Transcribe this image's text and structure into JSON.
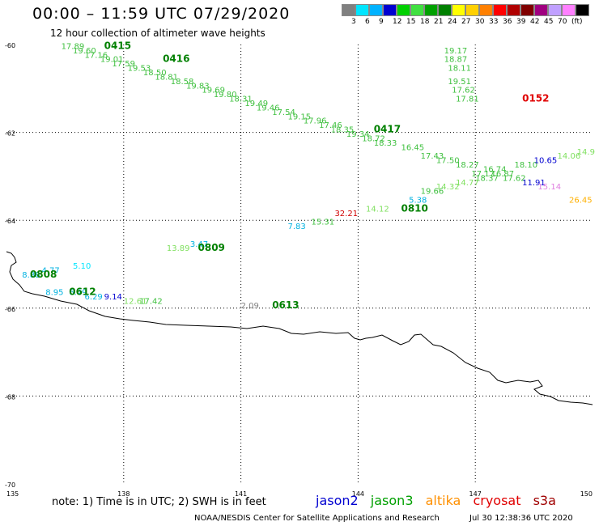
{
  "header": {
    "title": "00:00 – 11:59 UTC 07/29/2020",
    "subtitle": "12 hour collection of altimeter wave heights"
  },
  "legend": {
    "colors": [
      "#808080",
      "#00e5ff",
      "#00b2ff",
      "#0000d0",
      "#00d000",
      "#40e040",
      "#00a000",
      "#008000",
      "#ffff00",
      "#ffd000",
      "#ff8000",
      "#ff0000",
      "#b00000",
      "#800000",
      "#a00080",
      "#c0a0ff",
      "#ff80ff",
      "#000000"
    ],
    "labels": [
      "3",
      "6",
      "9",
      "12",
      "15",
      "18",
      "21",
      "24",
      "27",
      "30",
      "33",
      "36",
      "39",
      "42",
      "45",
      "70",
      "(ft)"
    ],
    "unit": "(ft)"
  },
  "axes": {
    "lon_ticks": [
      "135",
      "138",
      "141",
      "144",
      "147",
      "150"
    ],
    "lat_ticks": [
      "-60",
      "-62",
      "-64",
      "-66",
      "-68",
      "-70"
    ]
  },
  "passes": [
    {
      "label": "0415",
      "lon": 137.5,
      "lat": -60.1,
      "color": "#008000"
    },
    {
      "label": "0416",
      "lon": 139.0,
      "lat": -60.4,
      "color": "#008000"
    },
    {
      "label": "0417",
      "lon": 144.4,
      "lat": -62.0,
      "color": "#008000"
    },
    {
      "label": "0152",
      "lon": 148.2,
      "lat": -61.3,
      "color": "#e00000"
    },
    {
      "label": "0810",
      "lon": 145.1,
      "lat": -63.8,
      "color": "#008000"
    },
    {
      "label": "0809",
      "lon": 139.9,
      "lat": -64.7,
      "color": "#008000"
    },
    {
      "label": "0808",
      "lon": 135.6,
      "lat": -65.3,
      "color": "#008000"
    },
    {
      "label": "0612",
      "lon": 136.6,
      "lat": -65.7,
      "color": "#008000"
    },
    {
      "label": "0613",
      "lon": 141.8,
      "lat": -66.0,
      "color": "#008000"
    }
  ],
  "observations": [
    {
      "v": "17.89",
      "lon": 136.4,
      "lat": -60.1,
      "color": "#40c040"
    },
    {
      "v": "19.60",
      "lon": 136.7,
      "lat": -60.2,
      "color": "#40c040"
    },
    {
      "v": "17.16",
      "lon": 137.0,
      "lat": -60.3,
      "color": "#40c040"
    },
    {
      "v": "19.01",
      "lon": 137.4,
      "lat": -60.4,
      "color": "#40c040"
    },
    {
      "v": "17.59",
      "lon": 137.7,
      "lat": -60.5,
      "color": "#40c040"
    },
    {
      "v": "19.53",
      "lon": 138.1,
      "lat": -60.6,
      "color": "#40c040"
    },
    {
      "v": "18.50",
      "lon": 138.5,
      "lat": -60.7,
      "color": "#40c040"
    },
    {
      "v": "18.81",
      "lon": 138.8,
      "lat": -60.8,
      "color": "#40c040"
    },
    {
      "v": "18.58",
      "lon": 139.2,
      "lat": -60.9,
      "color": "#40c040"
    },
    {
      "v": "19.83",
      "lon": 139.6,
      "lat": -61.0,
      "color": "#40c040"
    },
    {
      "v": "19.69",
      "lon": 140.0,
      "lat": -61.1,
      "color": "#40c040"
    },
    {
      "v": "19.80",
      "lon": 140.3,
      "lat": -61.2,
      "color": "#40c040"
    },
    {
      "v": "18.31",
      "lon": 140.7,
      "lat": -61.3,
      "color": "#40c040"
    },
    {
      "v": "19.49",
      "lon": 141.1,
      "lat": -61.4,
      "color": "#40c040"
    },
    {
      "v": "19.46",
      "lon": 141.4,
      "lat": -61.5,
      "color": "#40c040"
    },
    {
      "v": "17.54",
      "lon": 141.8,
      "lat": -61.6,
      "color": "#40c040"
    },
    {
      "v": "19.15",
      "lon": 142.2,
      "lat": -61.7,
      "color": "#40c040"
    },
    {
      "v": "17.96",
      "lon": 142.6,
      "lat": -61.8,
      "color": "#40c040"
    },
    {
      "v": "17.46",
      "lon": 143.0,
      "lat": -61.9,
      "color": "#40c040"
    },
    {
      "v": "18.35",
      "lon": 143.3,
      "lat": -62.0,
      "color": "#40c040"
    },
    {
      "v": "19.34",
      "lon": 143.7,
      "lat": -62.1,
      "color": "#40c040"
    },
    {
      "v": "18.72",
      "lon": 144.1,
      "lat": -62.2,
      "color": "#40c040"
    },
    {
      "v": "18.33",
      "lon": 144.4,
      "lat": -62.3,
      "color": "#40c040"
    },
    {
      "v": "16.45",
      "lon": 145.1,
      "lat": -62.4,
      "color": "#40c040"
    },
    {
      "v": "17.43",
      "lon": 145.6,
      "lat": -62.6,
      "color": "#40c040"
    },
    {
      "v": "17.50",
      "lon": 146.0,
      "lat": -62.7,
      "color": "#40c040"
    },
    {
      "v": "18.27",
      "lon": 146.5,
      "lat": -62.8,
      "color": "#40c040"
    },
    {
      "v": "17.17",
      "lon": 146.9,
      "lat": -63.0,
      "color": "#40c040"
    },
    {
      "v": "16.74",
      "lon": 147.2,
      "lat": -62.9,
      "color": "#40c040"
    },
    {
      "v": "16.87",
      "lon": 147.4,
      "lat": -63.0,
      "color": "#40c040"
    },
    {
      "v": "17.62",
      "lon": 147.7,
      "lat": -63.1,
      "color": "#40c040"
    },
    {
      "v": "18.10",
      "lon": 148.0,
      "lat": -62.8,
      "color": "#40c040"
    },
    {
      "v": "18.37",
      "lon": 147.0,
      "lat": -63.1,
      "color": "#40c040"
    },
    {
      "v": "10.65",
      "lon": 148.5,
      "lat": -62.7,
      "color": "#0000d0"
    },
    {
      "v": "11.91",
      "lon": 148.2,
      "lat": -63.2,
      "color": "#0000d0"
    },
    {
      "v": "14.06",
      "lon": 149.1,
      "lat": -62.6,
      "color": "#80e060"
    },
    {
      "v": "14.9",
      "lon": 149.6,
      "lat": -62.5,
      "color": "#80e060"
    },
    {
      "v": "15.14",
      "lon": 148.6,
      "lat": -63.3,
      "color": "#e080e0"
    },
    {
      "v": "26.45",
      "lon": 149.4,
      "lat": -63.6,
      "color": "#ffb000"
    },
    {
      "v": "19.17",
      "lon": 146.2,
      "lat": -60.2,
      "color": "#40c040"
    },
    {
      "v": "18.87",
      "lon": 146.2,
      "lat": -60.4,
      "color": "#40c040"
    },
    {
      "v": "18.11",
      "lon": 146.3,
      "lat": -60.6,
      "color": "#40c040"
    },
    {
      "v": "19.51",
      "lon": 146.3,
      "lat": -60.9,
      "color": "#40c040"
    },
    {
      "v": "17.62",
      "lon": 146.4,
      "lat": -61.1,
      "color": "#40c040"
    },
    {
      "v": "17.81",
      "lon": 146.5,
      "lat": -61.3,
      "color": "#40c040"
    },
    {
      "v": "14.32",
      "lon": 146.0,
      "lat": -63.3,
      "color": "#80e060"
    },
    {
      "v": "14.77",
      "lon": 146.5,
      "lat": -63.2,
      "color": "#80e060"
    },
    {
      "v": "19.66",
      "lon": 145.6,
      "lat": -63.4,
      "color": "#40c040"
    },
    {
      "v": "5.38",
      "lon": 145.3,
      "lat": -63.6,
      "color": "#00b2e0"
    },
    {
      "v": "14.12",
      "lon": 144.2,
      "lat": -63.8,
      "color": "#80e060"
    },
    {
      "v": "32.21",
      "lon": 143.4,
      "lat": -63.9,
      "color": "#d00000"
    },
    {
      "v": "15.31",
      "lon": 142.8,
      "lat": -64.1,
      "color": "#40c040"
    },
    {
      "v": "7.83",
      "lon": 142.2,
      "lat": -64.2,
      "color": "#00b2e0"
    },
    {
      "v": "13.89",
      "lon": 139.1,
      "lat": -64.7,
      "color": "#80e060"
    },
    {
      "v": "3.47",
      "lon": 139.7,
      "lat": -64.6,
      "color": "#00b2e0"
    },
    {
      "v": "4.77",
      "lon": 135.9,
      "lat": -65.2,
      "color": "#00b2e0"
    },
    {
      "v": "5.10",
      "lon": 136.7,
      "lat": -65.1,
      "color": "#00e5ff"
    },
    {
      "v": "8.88",
      "lon": 135.4,
      "lat": -65.3,
      "color": "#00b2e0"
    },
    {
      "v": "8.95",
      "lon": 136.0,
      "lat": -65.7,
      "color": "#00b2e0"
    },
    {
      "v": "6.49",
      "lon": 136.6,
      "lat": -65.7,
      "color": "#00b2e0"
    },
    {
      "v": "6.29",
      "lon": 137.0,
      "lat": -65.8,
      "color": "#00b2e0"
    },
    {
      "v": "9.14",
      "lon": 137.5,
      "lat": -65.8,
      "color": "#0000d0"
    },
    {
      "v": "12.61",
      "lon": 138.0,
      "lat": -65.9,
      "color": "#80e060"
    },
    {
      "v": "17.42",
      "lon": 138.4,
      "lat": -65.9,
      "color": "#40c040"
    },
    {
      "v": "2.09",
      "lon": 141.0,
      "lat": -66.0,
      "color": "#808080"
    }
  ],
  "footer": {
    "note": "note: 1) Time is in UTC; 2) SWH is in feet",
    "satellites": [
      {
        "name": "jason2",
        "color": "#0000d0"
      },
      {
        "name": "jason3",
        "color": "#00a000"
      },
      {
        "name": "altika",
        "color": "#ff9000"
      },
      {
        "name": "cryosat",
        "color": "#e00000"
      },
      {
        "name": "s3a",
        "color": "#a00000"
      }
    ],
    "credit": "NOAA/NESDIS Center for Satellite Applications and Research",
    "timestamp": "Jul 30 12:38:36 UTC 2020"
  }
}
